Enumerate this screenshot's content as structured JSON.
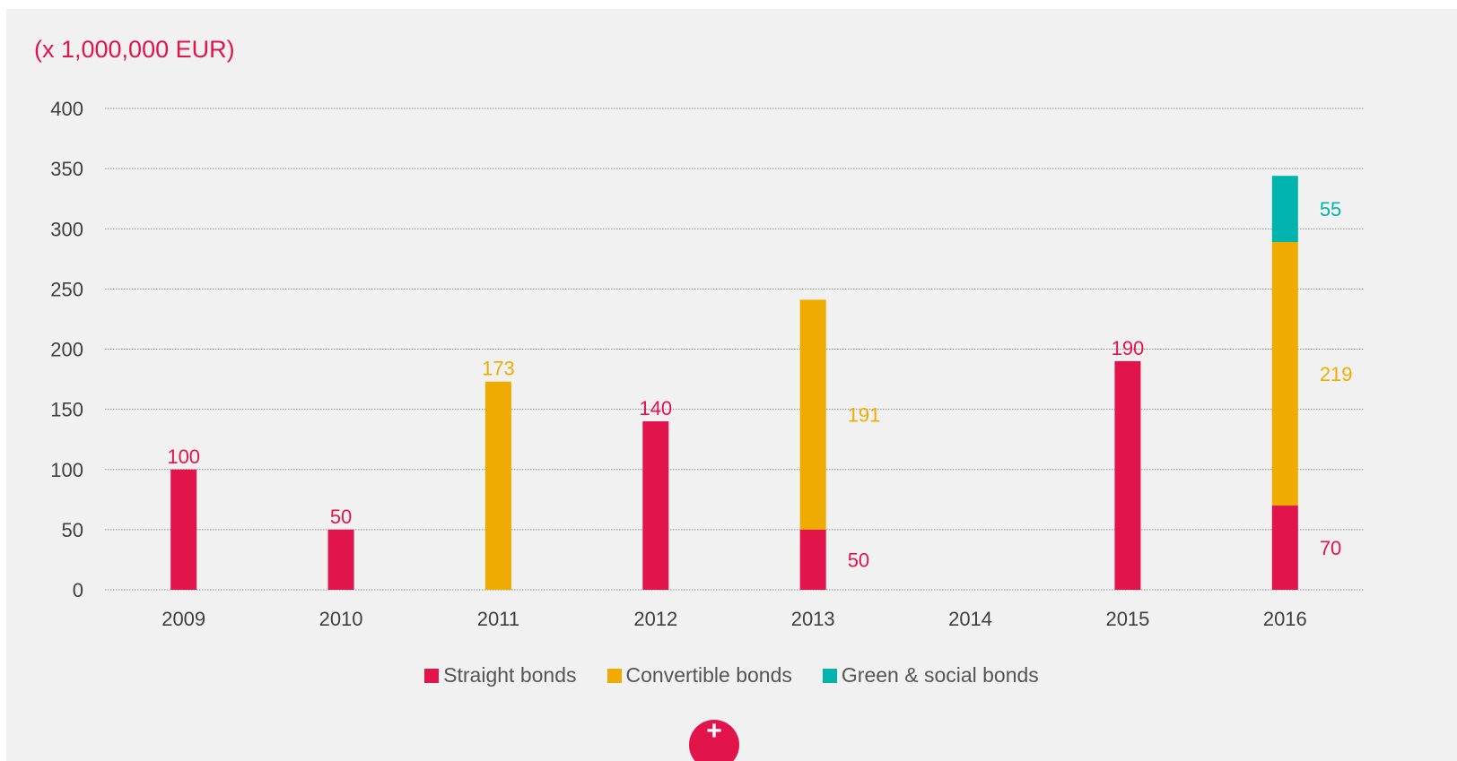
{
  "chart_data": {
    "type": "bar",
    "stacked": true,
    "unit_label": "(x 1,000,000 EUR)",
    "categories": [
      "2009",
      "2010",
      "2011",
      "2012",
      "2013",
      "2014",
      "2015",
      "2016"
    ],
    "ylim": [
      0,
      400
    ],
    "yticks": [
      0,
      50,
      100,
      150,
      200,
      250,
      300,
      350,
      400
    ],
    "grid": true,
    "legend_position": "bottom",
    "series": [
      {
        "name": "Straight bonds",
        "color": "#e2144c",
        "values": [
          100,
          50,
          0,
          140,
          50,
          0,
          190,
          70
        ],
        "labels": [
          "100",
          "50",
          null,
          "140",
          "50",
          null,
          "190",
          "70"
        ]
      },
      {
        "name": "Convertible bonds",
        "color": "#f0ab00",
        "values": [
          0,
          0,
          173,
          0,
          191,
          0,
          0,
          219
        ],
        "labels": [
          null,
          null,
          "173",
          null,
          "191",
          null,
          null,
          "219"
        ]
      },
      {
        "name": "Green & social bonds",
        "color": "#00b3ac",
        "values": [
          0,
          0,
          0,
          0,
          0,
          0,
          0,
          55
        ],
        "labels": [
          null,
          null,
          null,
          null,
          null,
          null,
          null,
          "55"
        ]
      }
    ]
  },
  "colors": {
    "tick_text": "#404040",
    "grid": "#8c8c8c",
    "accent": "#e2144c"
  },
  "plus_button": {
    "icon": "plus-icon",
    "glyph": "+"
  }
}
